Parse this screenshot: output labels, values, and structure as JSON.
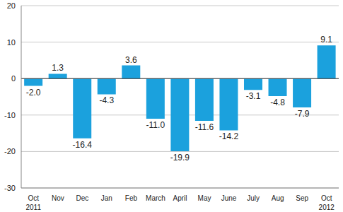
{
  "chart_data": {
    "type": "bar",
    "categories": [
      "Oct",
      "Nov",
      "Dec",
      "Jan",
      "Feb",
      "March",
      "April",
      "May",
      "June",
      "July",
      "Aug",
      "Sep",
      "Oct"
    ],
    "year_labels": [
      "2011",
      null,
      null,
      null,
      null,
      null,
      null,
      null,
      null,
      null,
      null,
      null,
      "2012"
    ],
    "values": [
      -2.0,
      1.3,
      -16.4,
      -4.3,
      3.6,
      -11.0,
      -19.9,
      -11.6,
      -14.2,
      -3.1,
      -4.8,
      -7.9,
      9.1
    ],
    "value_labels": [
      "-2.0",
      "1.3",
      "-16.4",
      "-4.3",
      "3.6",
      "-11.0",
      "-19.9",
      "-11.6",
      "-14.2",
      "-3.1",
      "-4.8",
      "-7.9",
      "9.1"
    ],
    "color": "#1ba1dd",
    "ylim": [
      -30,
      20
    ],
    "yticks": [
      -30,
      -20,
      -10,
      0,
      10,
      20
    ],
    "grid": true,
    "data_labels": true
  }
}
